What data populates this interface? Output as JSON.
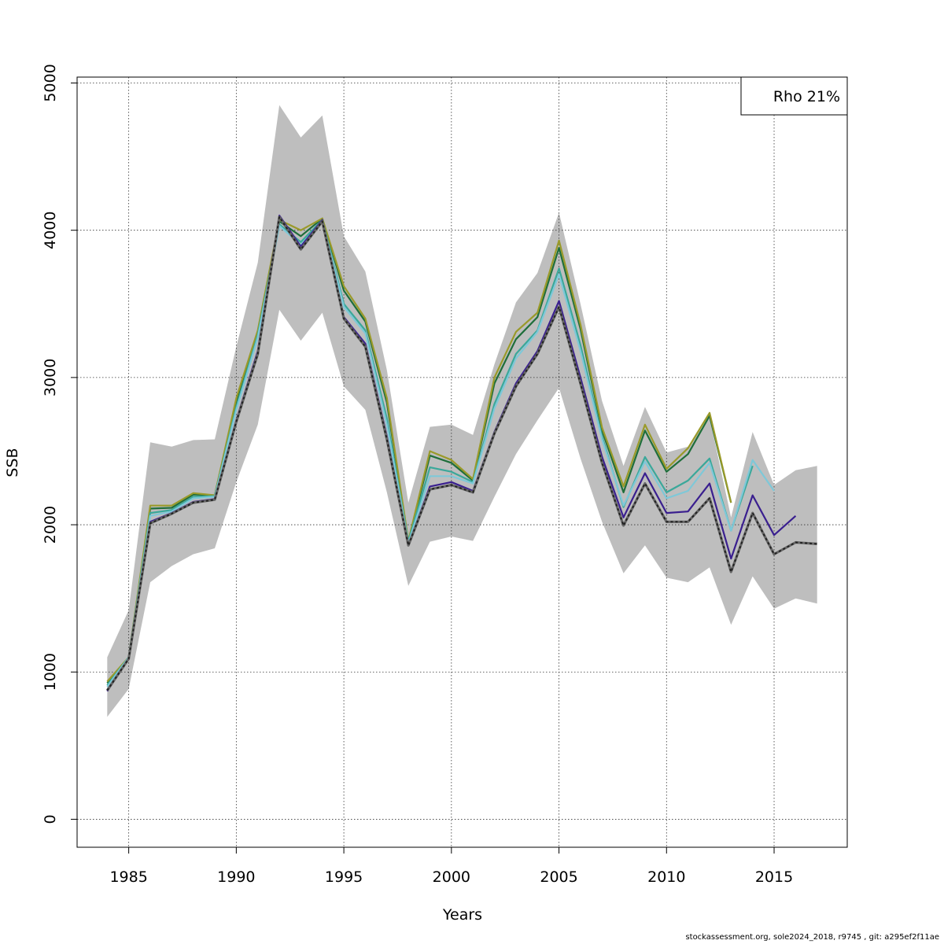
{
  "chart_data": {
    "type": "line",
    "xlabel": "Years",
    "ylabel": "SSB",
    "xlim": [
      1982.6,
      2018.4
    ],
    "ylim": [
      -190,
      5040
    ],
    "xticks": [
      1985,
      1990,
      1995,
      2000,
      2005,
      2010,
      2015
    ],
    "yticks": [
      0,
      1000,
      2000,
      3000,
      4000,
      5000
    ],
    "grid": true,
    "legend": {
      "text": "Rho 21%",
      "placement": "top-right"
    },
    "band": {
      "x": [
        1984,
        1985,
        1986,
        1987,
        1988,
        1989,
        1990,
        1991,
        1992,
        1993,
        1994,
        1995,
        1996,
        1997,
        1998,
        1999,
        2000,
        2001,
        2002,
        2003,
        2004,
        2005,
        2006,
        2007,
        2008,
        2009,
        2010,
        2011,
        2012,
        2013,
        2014,
        2015,
        2016,
        2017
      ],
      "upper": [
        1100,
        1420,
        2560,
        2530,
        2575,
        2580,
        3210,
        3780,
        4850,
        4630,
        4780,
        3960,
        3720,
        3050,
        2150,
        2665,
        2680,
        2610,
        3090,
        3510,
        3710,
        4120,
        3500,
        2840,
        2400,
        2800,
        2490,
        2530,
        2730,
        2050,
        2630,
        2270,
        2370,
        2400
      ],
      "lower": [
        695,
        885,
        1610,
        1720,
        1800,
        1840,
        2290,
        2680,
        3460,
        3250,
        3440,
        2940,
        2780,
        2220,
        1585,
        1885,
        1920,
        1890,
        2190,
        2480,
        2710,
        2930,
        2450,
        2020,
        1670,
        1860,
        1640,
        1610,
        1710,
        1320,
        1650,
        1430,
        1500,
        1465
      ]
    },
    "series": [
      {
        "color": "#222222",
        "dashed": true,
        "x": [
          1984,
          1985,
          1986,
          1987,
          1988,
          1989,
          1990,
          1991,
          1992,
          1993,
          1994,
          1995,
          1996,
          1997,
          1998,
          1999,
          2000,
          2001,
          2002,
          2003,
          2004,
          2005,
          2006,
          2007,
          2008,
          2009,
          2010,
          2011,
          2012,
          2013,
          2014,
          2015,
          2016,
          2017
        ],
        "values": [
          875,
          1090,
          2010,
          2075,
          2150,
          2170,
          2700,
          3160,
          4090,
          3870,
          4060,
          3400,
          3210,
          2580,
          1860,
          2240,
          2270,
          2220,
          2620,
          2940,
          3160,
          3480,
          2960,
          2420,
          1995,
          2280,
          2020,
          2020,
          2180,
          1680,
          2080,
          1800,
          1880,
          1870
        ]
      },
      {
        "color": "#3a1f8f",
        "dashed": false,
        "x": [
          1984,
          1985,
          1986,
          1987,
          1988,
          1989,
          1990,
          1991,
          1992,
          1993,
          1994,
          1995,
          1996,
          1997,
          1998,
          1999,
          2000,
          2001,
          2002,
          2003,
          2004,
          2005,
          2006,
          2007,
          2008,
          2009,
          2010,
          2011,
          2012,
          2013,
          2014,
          2015,
          2016
        ],
        "values": [
          870,
          1095,
          2020,
          2080,
          2155,
          2175,
          2710,
          3180,
          4100,
          3890,
          4070,
          3410,
          3230,
          2600,
          1860,
          2260,
          2290,
          2230,
          2630,
          2960,
          3180,
          3520,
          3000,
          2460,
          2050,
          2350,
          2080,
          2090,
          2280,
          1770,
          2200,
          1930,
          2060
        ]
      },
      {
        "color": "#7ec8d8",
        "dashed": false,
        "x": [
          1984,
          1985,
          1986,
          1987,
          1988,
          1989,
          1990,
          1991,
          1992,
          1993,
          1994,
          1995,
          1996,
          1997,
          1998,
          1999,
          2000,
          2001,
          2002,
          2003,
          2004,
          2005,
          2006,
          2007,
          2008,
          2009,
          2010,
          2011,
          2012,
          2013,
          2014,
          2015
        ],
        "values": [
          900,
          1100,
          2060,
          2090,
          2180,
          2190,
          2780,
          3270,
          4030,
          3900,
          4060,
          3480,
          3300,
          2680,
          1875,
          2330,
          2330,
          2280,
          2790,
          3130,
          3310,
          3700,
          3180,
          2580,
          2130,
          2430,
          2180,
          2230,
          2420,
          1960,
          2440,
          2230
        ]
      },
      {
        "color": "#3aa89a",
        "dashed": false,
        "x": [
          1984,
          1985,
          1986,
          1987,
          1988,
          1989,
          1990,
          1991,
          1992,
          1993,
          1994,
          1995,
          1996,
          1997,
          1998,
          1999,
          2000,
          2001,
          2002,
          2003,
          2004,
          2005,
          2006,
          2007,
          2008,
          2009,
          2010,
          2011,
          2012,
          2013,
          2014
        ],
        "values": [
          910,
          1100,
          2080,
          2100,
          2190,
          2195,
          2800,
          3290,
          4040,
          3920,
          4070,
          3500,
          3320,
          2720,
          1885,
          2390,
          2360,
          2290,
          2820,
          3160,
          3320,
          3740,
          3220,
          2600,
          2120,
          2460,
          2220,
          2300,
          2450,
          1960,
          2400
        ]
      },
      {
        "color": "#9a9a2a",
        "dashed": false,
        "x": [
          1984,
          1985,
          1986,
          1987,
          1988,
          1989,
          1990,
          1991,
          1992,
          1993,
          1994,
          1995,
          1996,
          1997,
          1998,
          1999,
          2000,
          2001,
          2002,
          2003,
          2004,
          2005,
          2006,
          2007,
          2008,
          2009,
          2010,
          2011,
          2012,
          2013
        ],
        "values": [
          935,
          1100,
          2130,
          2130,
          2215,
          2200,
          2860,
          3320,
          4070,
          4000,
          4080,
          3620,
          3400,
          2860,
          1890,
          2500,
          2440,
          2310,
          3000,
          3310,
          3440,
          3930,
          3360,
          2660,
          2260,
          2680,
          2380,
          2520,
          2760,
          2150
        ]
      },
      {
        "color": "#1f6e3a",
        "dashed": false,
        "x": [
          1984,
          1985,
          1986,
          1987,
          1988,
          1989,
          1990,
          1991,
          1992,
          1993,
          1994,
          1995,
          1996,
          1997,
          1998,
          1999,
          2000,
          2001,
          2002,
          2003,
          2004,
          2005,
          2006,
          2007,
          2008,
          2009,
          2010,
          2011,
          2012,
          2013
        ],
        "values": [
          925,
          1095,
          2110,
          2115,
          2205,
          2200,
          2840,
          3310,
          4060,
          3960,
          4080,
          3590,
          3380,
          2830,
          1885,
          2470,
          2420,
          2300,
          2960,
          3260,
          3410,
          3880,
          3330,
          2640,
          2220,
          2640,
          2360,
          2480,
          2740,
          2150
        ]
      }
    ]
  },
  "footer": "stockassessment.org, sole2024_2018, r9745 , git: a295ef2f11ae"
}
